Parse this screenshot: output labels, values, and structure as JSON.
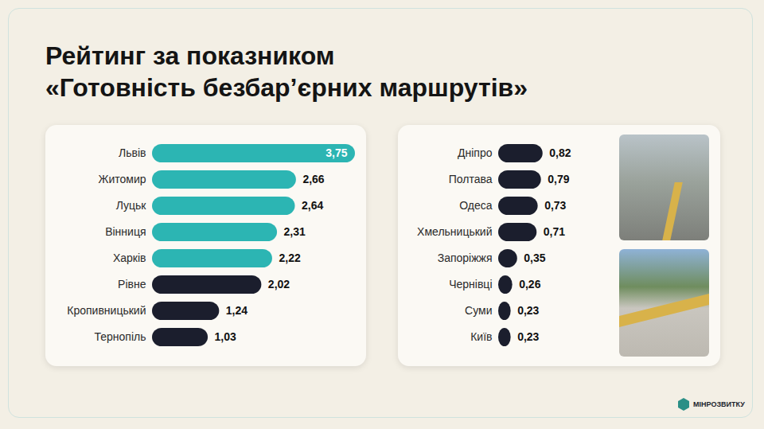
{
  "chart_data": {
    "type": "bar",
    "orientation": "horizontal",
    "title": "Рейтинг за показником «Готовність безбар’єрних маршрутів»",
    "categories": [
      "Львів",
      "Житомир",
      "Луцьк",
      "Вінниця",
      "Харків",
      "Рівне",
      "Кропивницький",
      "Тернопіль",
      "Дніпро",
      "Полтава",
      "Одеса",
      "Хмельницький",
      "Запоріжжя",
      "Чернівці",
      "Суми",
      "Київ"
    ],
    "values": [
      3.75,
      2.66,
      2.64,
      2.31,
      2.22,
      2.02,
      1.24,
      1.03,
      0.82,
      0.79,
      0.73,
      0.71,
      0.35,
      0.26,
      0.23,
      0.23
    ],
    "value_labels": [
      "3,75",
      "2,66",
      "2,64",
      "2,31",
      "2,22",
      "2,02",
      "1,24",
      "1,03",
      "0,82",
      "0,79",
      "0,73",
      "0,71",
      "0,35",
      "0,26",
      "0,23",
      "0,23"
    ],
    "colors": [
      "#2cb5b3",
      "#2cb5b3",
      "#2cb5b3",
      "#2cb5b3",
      "#2cb5b3",
      "#1b1e2d",
      "#1b1e2d",
      "#1b1e2d",
      "#1b1e2d",
      "#1b1e2d",
      "#1b1e2d",
      "#1b1e2d",
      "#1b1e2d",
      "#1b1e2d",
      "#1b1e2d",
      "#1b1e2d"
    ],
    "xlim": [
      0,
      3.75
    ],
    "data_labels": true,
    "tick_labels": "y",
    "grid": false
  },
  "logo": "МІНРОЗВИТКУ"
}
